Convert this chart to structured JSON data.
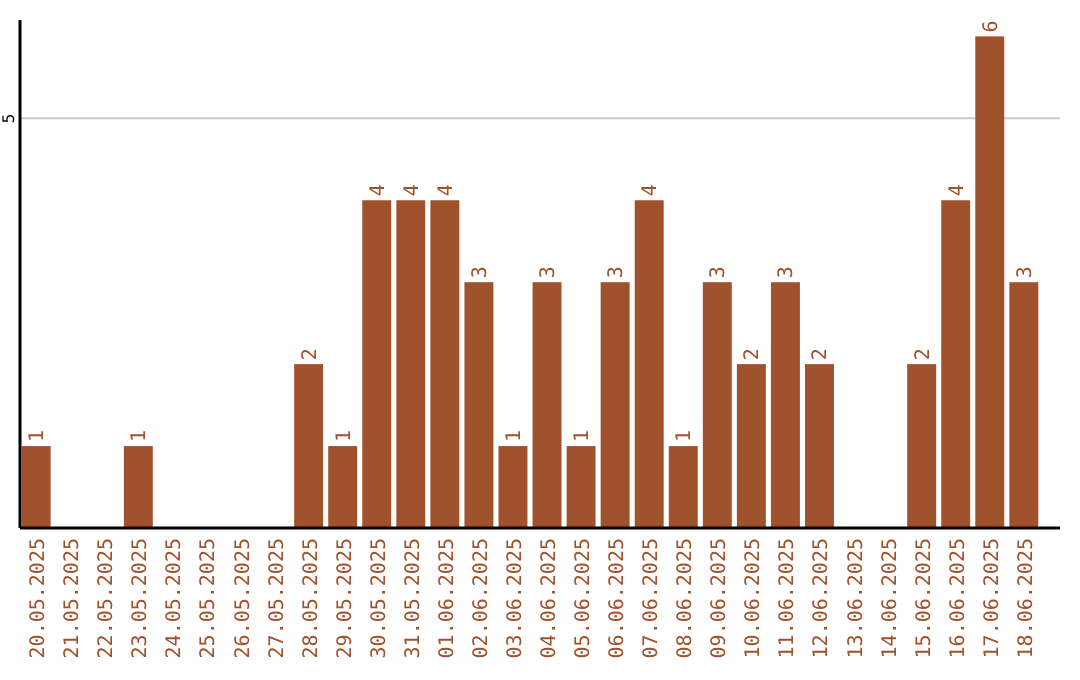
{
  "chart_data": {
    "type": "bar",
    "categories": [
      "20.05.2025",
      "21.05.2025",
      "22.05.2025",
      "23.05.2025",
      "24.05.2025",
      "25.05.2025",
      "26.05.2025",
      "27.05.2025",
      "28.05.2025",
      "29.05.2025",
      "30.05.2025",
      "31.05.2025",
      "01.06.2025",
      "02.06.2025",
      "03.06.2025",
      "04.06.2025",
      "05.06.2025",
      "06.06.2025",
      "07.06.2025",
      "08.06.2025",
      "09.06.2025",
      "10.06.2025",
      "11.06.2025",
      "12.06.2025",
      "13.06.2025",
      "14.06.2025",
      "15.06.2025",
      "16.06.2025",
      "17.06.2025",
      "18.06.2025"
    ],
    "values": [
      1,
      0,
      0,
      1,
      0,
      0,
      0,
      0,
      2,
      1,
      4,
      4,
      4,
      3,
      1,
      3,
      1,
      3,
      4,
      1,
      3,
      2,
      3,
      2,
      0,
      0,
      2,
      4,
      6,
      3
    ],
    "value_labels": [
      "1",
      null,
      null,
      "1",
      null,
      null,
      null,
      null,
      "2",
      "1",
      "4",
      "4",
      "4",
      "3",
      "1",
      "3",
      "1",
      "3",
      "4",
      "1",
      "3",
      "2",
      "3",
      "2",
      null,
      null,
      "2",
      "4",
      "6",
      "3"
    ],
    "color": "#a0522d",
    "ylim": [
      0,
      6.2
    ],
    "yticks": [
      5
    ],
    "grid": "y"
  }
}
